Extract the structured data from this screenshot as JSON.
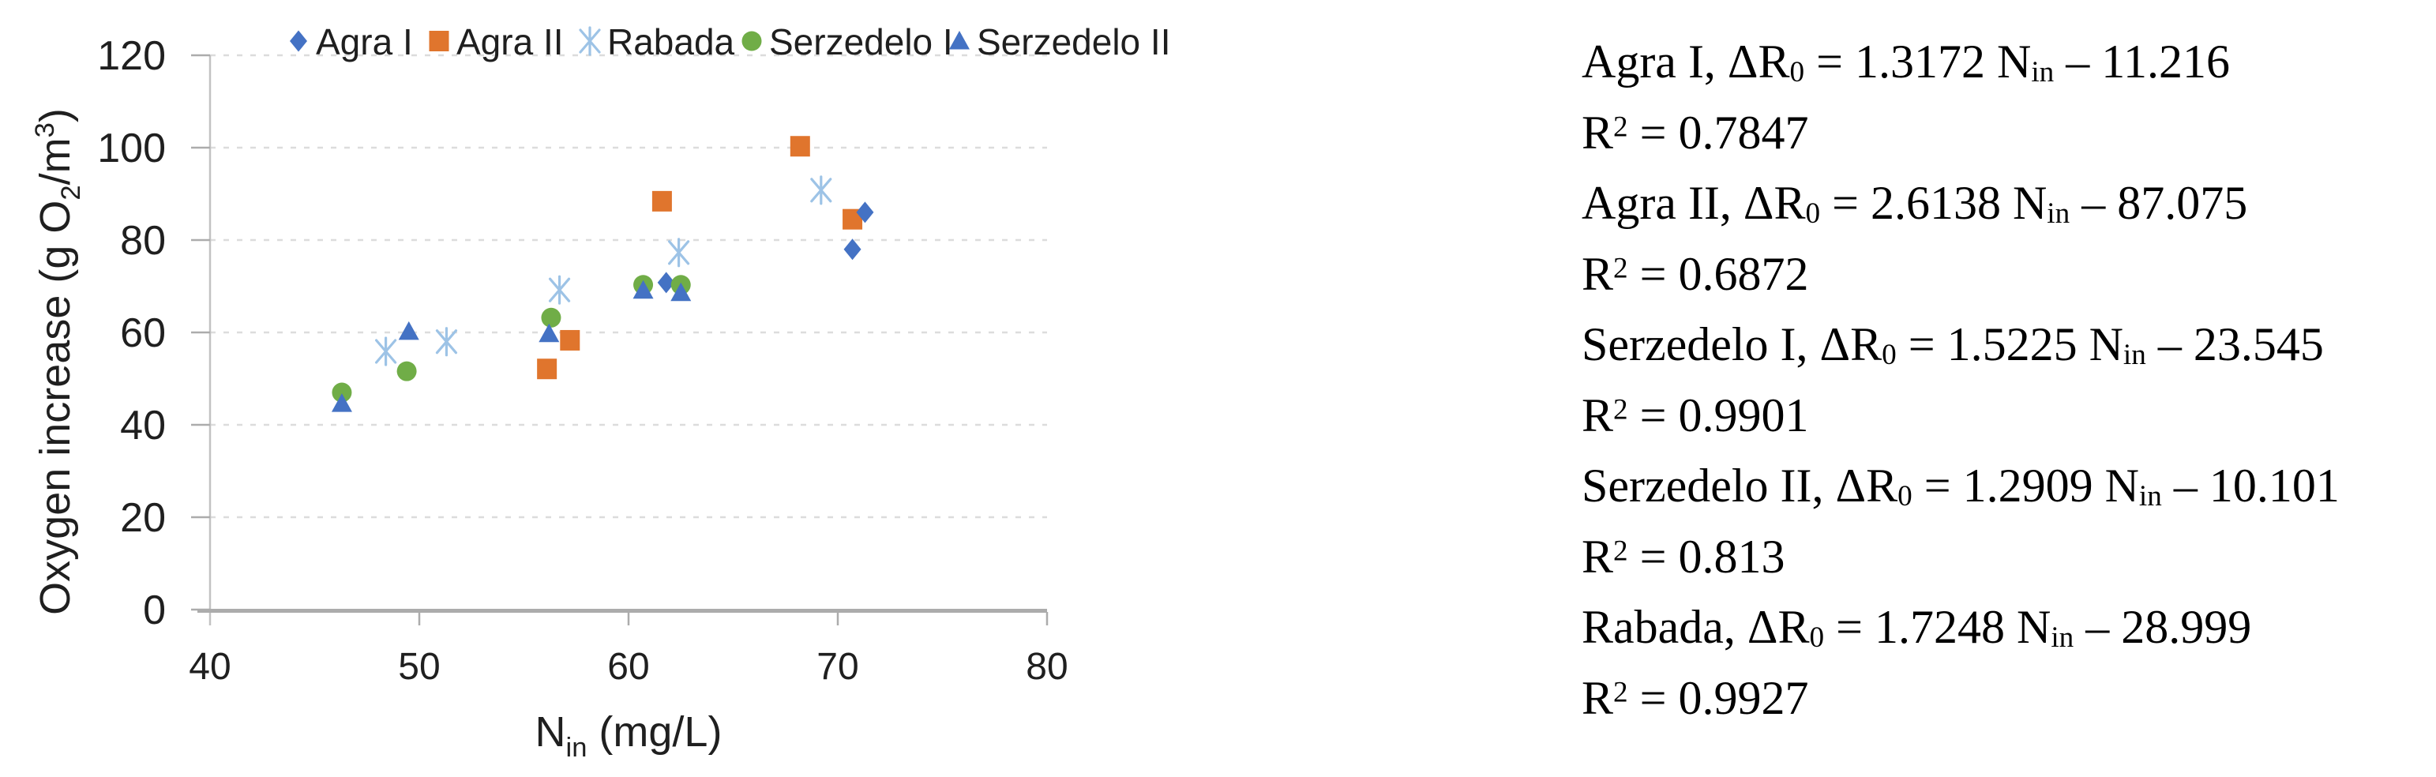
{
  "figure": {
    "background": "#ffffff"
  },
  "chart_data": {
    "type": "scatter",
    "title": "",
    "xlabel_rich": [
      [
        "t",
        "N"
      ],
      [
        "sub",
        "in"
      ],
      [
        "t",
        " (mg/L)"
      ]
    ],
    "ylabel_rich": [
      [
        "t",
        "Oxygen increase (g O"
      ],
      [
        "sub",
        "2"
      ],
      [
        "t",
        "/m"
      ],
      [
        "sup",
        "3"
      ],
      [
        "t",
        ")"
      ]
    ],
    "xlim": [
      40,
      80
    ],
    "ylim": [
      0,
      120
    ],
    "x_ticks": [
      40,
      50,
      60,
      70,
      80
    ],
    "y_ticks": [
      0,
      20,
      40,
      60,
      80,
      100,
      120
    ],
    "grid": "horizontal-dashed",
    "legend_position": "top",
    "axis_colors": {
      "axis_line": "#ACACAC",
      "grid_line": "#DCDCDC"
    },
    "series": [
      {
        "name": "Agra I",
        "marker": "diamond",
        "color": "#4472C4",
        "points": [
          [
            61.8,
            70.8
          ],
          [
            70.7,
            78.0
          ],
          [
            71.3,
            86.0
          ]
        ]
      },
      {
        "name": "Agra II",
        "marker": "square",
        "color": "#E0752D",
        "points": [
          [
            56.1,
            52.1
          ],
          [
            57.2,
            58.3
          ],
          [
            61.6,
            88.4
          ],
          [
            68.2,
            100.3
          ],
          [
            70.7,
            84.5
          ]
        ]
      },
      {
        "name": "Rabada",
        "marker": "asterisk",
        "color": "#9DC3E6",
        "points": [
          [
            48.4,
            55.9
          ],
          [
            51.3,
            58.0
          ],
          [
            56.7,
            69.2
          ],
          [
            62.4,
            77.3
          ],
          [
            69.2,
            90.8
          ]
        ]
      },
      {
        "name": "Serzedelo I",
        "marker": "circle",
        "color": "#70AD47",
        "points": [
          [
            46.3,
            47.0
          ],
          [
            49.4,
            51.6
          ],
          [
            56.3,
            63.2
          ],
          [
            60.7,
            70.3
          ],
          [
            62.5,
            70.3
          ]
        ]
      },
      {
        "name": "Serzedelo II",
        "marker": "triangle",
        "color": "#4472C4",
        "points": [
          [
            46.3,
            44.6
          ],
          [
            49.5,
            60.2
          ],
          [
            56.2,
            59.7
          ],
          [
            60.7,
            69.1
          ],
          [
            62.5,
            68.6
          ]
        ]
      }
    ]
  },
  "equations": {
    "delta_r_base": "ΔR",
    "delta_r_sub": "0",
    "n_base": "N",
    "n_sub": "in",
    "r_base": "R",
    "r_sup": "2",
    "equals": "=",
    "minus": "–",
    "comma": ",",
    "entries": [
      {
        "series": "Agra I",
        "slope": "1.3172",
        "intercept": "11.216",
        "r2": "0.7847"
      },
      {
        "series": "Agra II",
        "slope": "2.6138",
        "intercept": "87.075",
        "r2": "0.6872"
      },
      {
        "series": "Serzedelo I",
        "slope": "1.5225",
        "intercept": "23.545",
        "r2": "0.9901"
      },
      {
        "series": "Serzedelo II",
        "slope": "1.2909",
        "intercept": "10.101",
        "r2": "0.813"
      },
      {
        "series": "Rabada",
        "slope": "1.7248",
        "intercept": "28.999",
        "r2": "0.9927"
      }
    ]
  }
}
